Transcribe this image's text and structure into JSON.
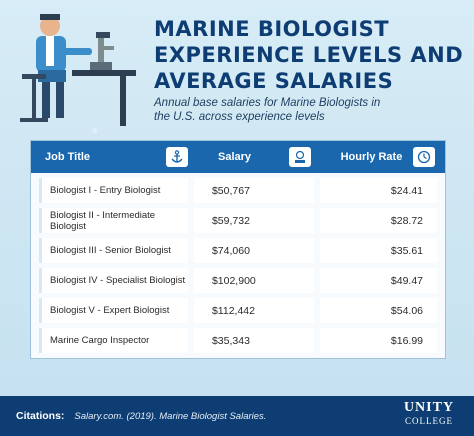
{
  "title": {
    "line1": "MARINE BIOLOGIST",
    "line2": "EXPERIENCE LEVELS AND",
    "line3": "AVERAGE SALARIES"
  },
  "subtitle": {
    "line1": "Annual base salaries for Marine Biologists in",
    "line2": "the U.S. across experience levels"
  },
  "table": {
    "headers": [
      "Job Title",
      "Salary",
      "Hourly Rate"
    ],
    "header_icons": [
      "anchor-icon",
      "salary-icon",
      "clock-icon"
    ],
    "rows": [
      {
        "title": "Biologist I - Entry Biologist",
        "salary": "$50,767",
        "hourly": "$24.41"
      },
      {
        "title": "Biologist II - Intermediate Biologist",
        "salary": "$59,732",
        "hourly": "$28.72"
      },
      {
        "title": "Biologist III - Senior Biologist",
        "salary": "$74,060",
        "hourly": "$35.61"
      },
      {
        "title": "Biologist IV - Specialist Biologist",
        "salary": "$102,900",
        "hourly": "$49.47"
      },
      {
        "title": "Biologist V - Expert Biologist",
        "salary": "$112,442",
        "hourly": "$54.06"
      },
      {
        "title": "Marine Cargo Inspector",
        "salary": "$35,343",
        "hourly": "$16.99"
      }
    ]
  },
  "footer": {
    "label": "Citations:",
    "text": "Salary.com. (2019). Marine Biologist Salaries.",
    "logo_line1": "UNITY",
    "logo_line2": "COLLEGE"
  },
  "colors": {
    "navy": "#0d3d72",
    "header_blue": "#1a67ad",
    "background": "#cfe6f2"
  }
}
